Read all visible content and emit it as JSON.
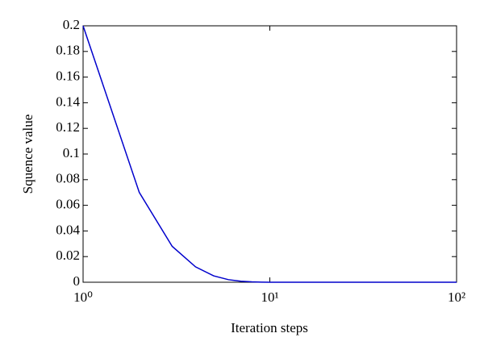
{
  "chart_data": {
    "type": "line",
    "x_label": "Iteration steps",
    "y_label": "Squence value",
    "x": [
      1,
      2,
      3,
      4,
      5,
      6,
      7,
      8,
      9,
      10,
      20,
      30,
      40,
      50,
      60,
      70,
      80,
      90,
      100
    ],
    "values": [
      0.2,
      0.07,
      0.028,
      0.012,
      0.005,
      0.002,
      0.0008,
      0.0003,
      0.0001,
      0,
      0,
      0,
      0,
      0,
      0,
      0,
      0,
      0,
      0
    ],
    "color": "#0000cc",
    "x_scale": "log",
    "xlim": [
      1,
      100
    ],
    "xticks": [
      {
        "value": 1,
        "label": "10⁰"
      },
      {
        "value": 10,
        "label": "10¹"
      },
      {
        "value": 100,
        "label": "10²"
      }
    ],
    "ylim": [
      0,
      0.2
    ],
    "yticks": [
      0,
      0.02,
      0.04,
      0.06,
      0.08,
      0.1,
      0.12,
      0.14,
      0.16,
      0.18,
      0.2
    ]
  }
}
